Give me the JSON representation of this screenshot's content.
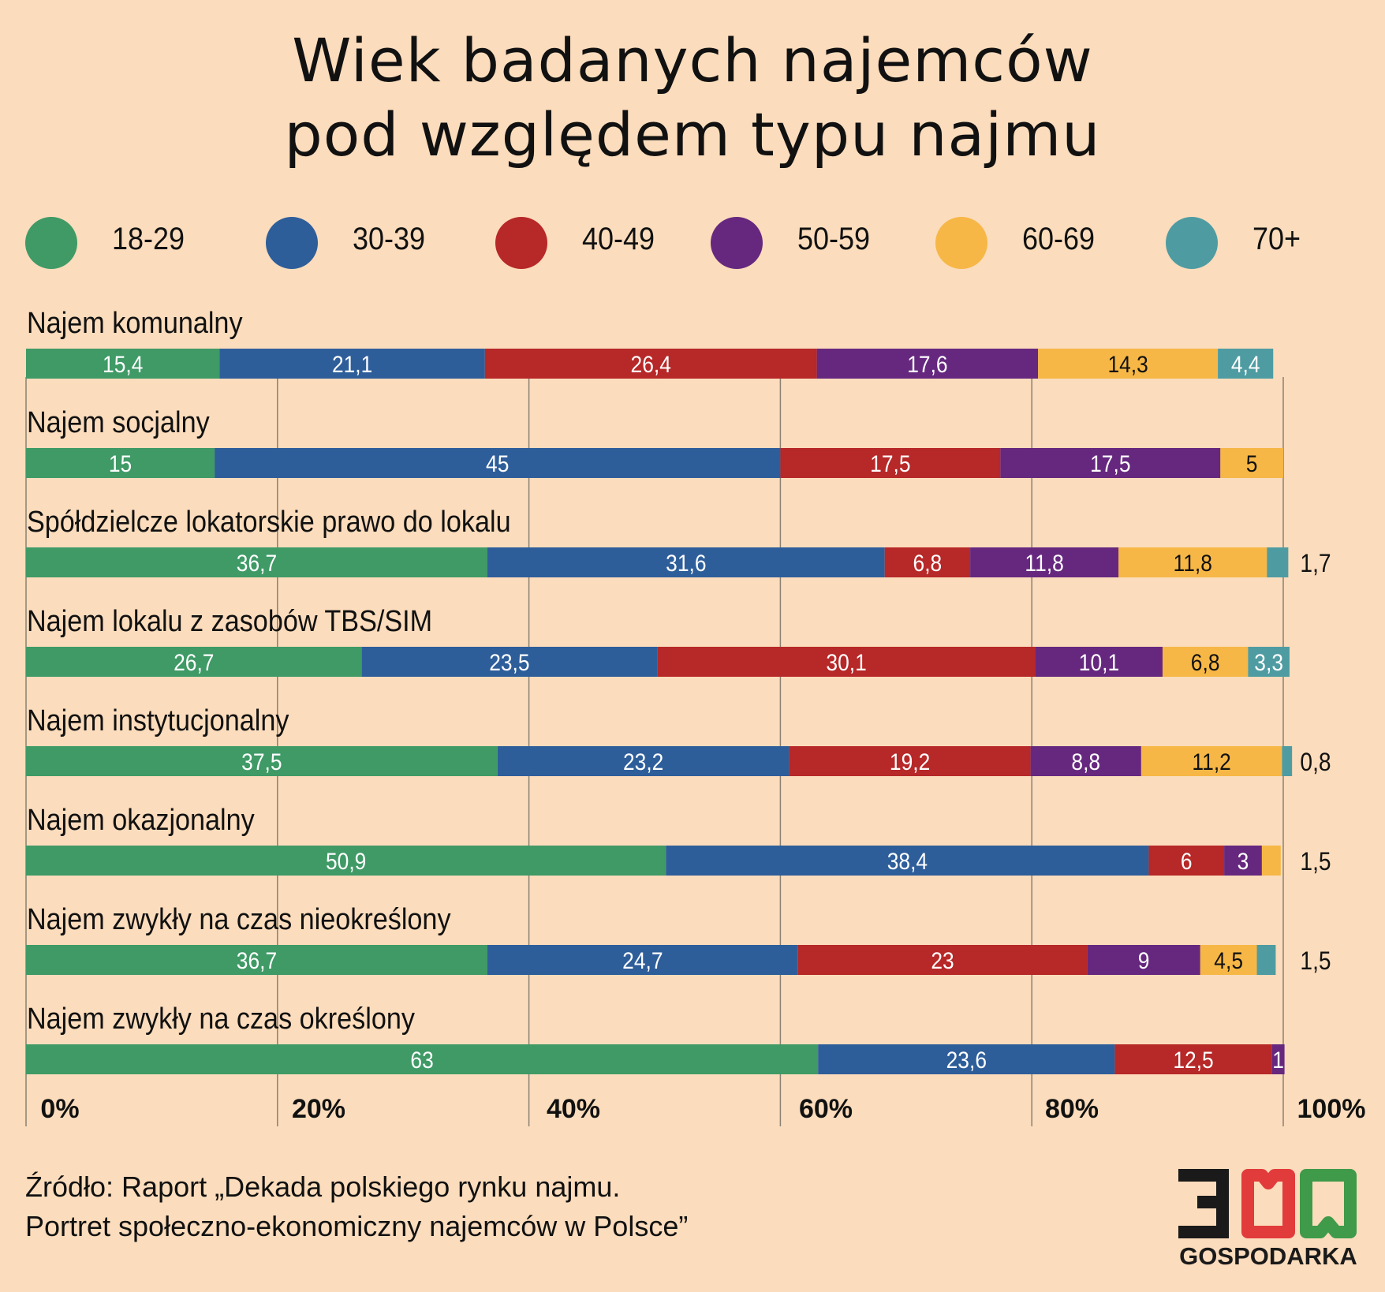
{
  "title_lines": [
    "Wiek badanych najemców",
    "pod względem typu najmu"
  ],
  "legend": [
    {
      "label": "18-29",
      "color": "#3f9a66"
    },
    {
      "label": "30-39",
      "color": "#2e5e9a"
    },
    {
      "label": "40-49",
      "color": "#b72828"
    },
    {
      "label": "50-59",
      "color": "#66287f"
    },
    {
      "label": "60-69",
      "color": "#f6b746"
    },
    {
      "label": "70+",
      "color": "#4e9ca2"
    }
  ],
  "chart_data": {
    "type": "bar",
    "orientation": "horizontal",
    "stacked": true,
    "series_names": [
      "18-29",
      "30-39",
      "40-49",
      "50-59",
      "60-69",
      "70+"
    ],
    "categories": [
      "Najem komunalny",
      "Najem socjalny",
      "Spółdzielcze lokatorskie prawo do lokalu",
      "Najem lokalu z zasobów TBS/SIM",
      "Najem instytucjonalny",
      "Najem okazjonalny",
      "Najem zwykły na czas nieokreślony",
      "Najem zwykły na czas określony"
    ],
    "values": [
      [
        15.4,
        21.1,
        26.4,
        17.6,
        14.3,
        4.4
      ],
      [
        15,
        45,
        17.5,
        17.5,
        5,
        0
      ],
      [
        36.7,
        31.6,
        6.8,
        11.8,
        11.8,
        1.7
      ],
      [
        26.7,
        23.5,
        30.1,
        10.1,
        6.8,
        3.3
      ],
      [
        37.5,
        23.2,
        19.2,
        8.8,
        11.2,
        0.8
      ],
      [
        50.9,
        38.4,
        6,
        3,
        1.5,
        0
      ],
      [
        36.7,
        24.7,
        23,
        9,
        4.5,
        1.5
      ],
      [
        63,
        23.6,
        12.5,
        1,
        0,
        0
      ]
    ],
    "labels": [
      [
        "15,4",
        "21,1",
        "26,4",
        "17,6",
        "14,3",
        "4,4"
      ],
      [
        "15",
        "45",
        "17,5",
        "17,5",
        "5",
        ""
      ],
      [
        "36,7",
        "31,6",
        "6,8",
        "11,8",
        "11,8",
        ""
      ],
      [
        "26,7",
        "23,5",
        "30,1",
        "10,1",
        "6,8",
        "3,3"
      ],
      [
        "37,5",
        "23,2",
        "19,2",
        "8,8",
        "11,2",
        ""
      ],
      [
        "50,9",
        "38,4",
        "6",
        "3",
        "",
        ""
      ],
      [
        "36,7",
        "24,7",
        "23",
        "9",
        "4,5",
        ""
      ],
      [
        "63",
        "23,6",
        "12,5",
        "1",
        "",
        ""
      ]
    ],
    "outside_labels": [
      "",
      "",
      "1,7",
      "",
      "0,8",
      "1,5",
      "1,5",
      ""
    ],
    "x_ticks": [
      "0%",
      "20%",
      "40%",
      "60%",
      "80%",
      "100%"
    ],
    "xlim": [
      0,
      100
    ],
    "grid": true
  },
  "source_lines": [
    "Źródło: Raport „Dekada polskiego rynku najmu.",
    "Portret społeczno-ekonomiczny najemców w Polsce”"
  ],
  "logo": {
    "number": "300",
    "text": "GOSPODARKA",
    "colors": [
      "#1a1a1a",
      "#e23b3b",
      "#3f9a4a"
    ]
  }
}
